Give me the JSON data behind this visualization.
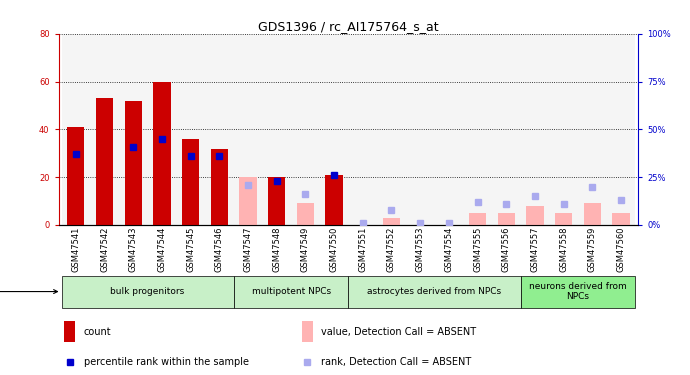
{
  "title": "GDS1396 / rc_AI175764_s_at",
  "samples": [
    "GSM47541",
    "GSM47542",
    "GSM47543",
    "GSM47544",
    "GSM47545",
    "GSM47546",
    "GSM47547",
    "GSM47548",
    "GSM47549",
    "GSM47550",
    "GSM47551",
    "GSM47552",
    "GSM47553",
    "GSM47554",
    "GSM47555",
    "GSM47556",
    "GSM47557",
    "GSM47558",
    "GSM47559",
    "GSM47560"
  ],
  "count_present": [
    41,
    53,
    52,
    60,
    36,
    32,
    null,
    20,
    null,
    21,
    null,
    null,
    null,
    null,
    null,
    null,
    null,
    null,
    null,
    null
  ],
  "count_absent": [
    null,
    null,
    null,
    null,
    null,
    null,
    20,
    null,
    9,
    null,
    null,
    3,
    null,
    null,
    5,
    5,
    8,
    5,
    9,
    5
  ],
  "rank_present": [
    37,
    null,
    41,
    45,
    36,
    36,
    null,
    23,
    null,
    26,
    null,
    null,
    null,
    null,
    null,
    null,
    null,
    null,
    null,
    null
  ],
  "rank_absent": [
    null,
    null,
    null,
    null,
    null,
    null,
    21,
    null,
    16,
    null,
    1,
    8,
    1,
    1,
    12,
    11,
    15,
    11,
    20,
    13
  ],
  "cell_type_groups": [
    {
      "label": "bulk progenitors",
      "start": 0,
      "end": 5,
      "color": "#c8f0c8"
    },
    {
      "label": "multipotent NPCs",
      "start": 6,
      "end": 9,
      "color": "#c8f0c8"
    },
    {
      "label": "astrocytes derived from NPCs",
      "start": 10,
      "end": 15,
      "color": "#c8f0c8"
    },
    {
      "label": "neurons derived from\nNPCs",
      "start": 16,
      "end": 19,
      "color": "#90ee90"
    }
  ],
  "ylim_left": [
    0,
    80
  ],
  "ylim_right": [
    0,
    100
  ],
  "yticks_left": [
    0,
    20,
    40,
    60,
    80
  ],
  "yticks_right": [
    0,
    25,
    50,
    75,
    100
  ],
  "color_count_present": "#cc0000",
  "color_count_absent": "#ffb3b3",
  "color_rank_present": "#0000cc",
  "color_rank_absent": "#aaaaee",
  "left_axis_color": "#cc0000",
  "right_axis_color": "#0000cc",
  "col_bg_color": "#d8d8d8",
  "bar_width": 0.6,
  "marker_size": 4,
  "title_fontsize": 9,
  "tick_fontsize": 6,
  "legend_fontsize": 7,
  "group_fontsize": 6.5
}
